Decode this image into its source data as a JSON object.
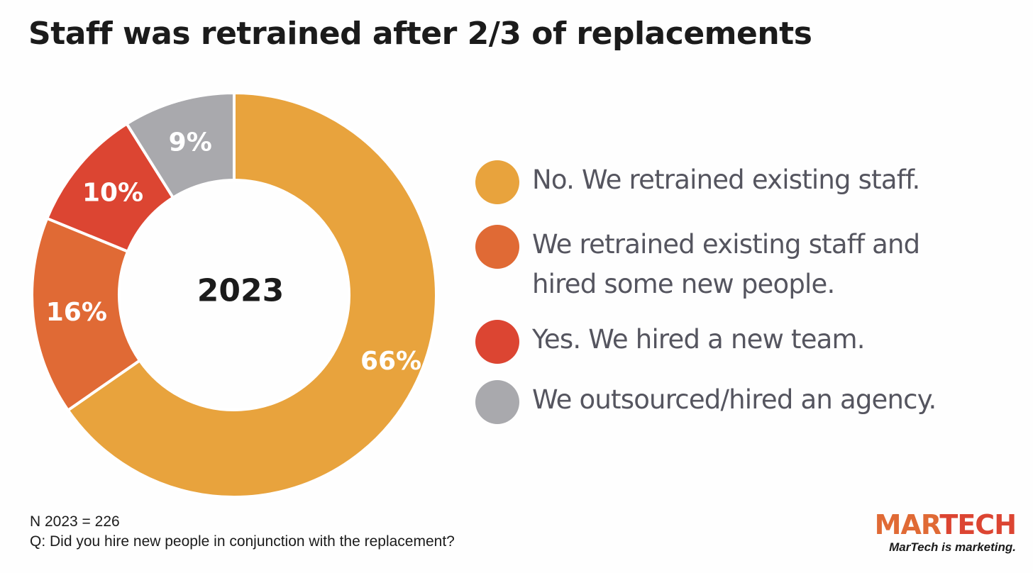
{
  "title": "Staff was retrained after 2/3 of replacements",
  "chart_data": {
    "type": "pie",
    "donut": true,
    "center_label": "2023",
    "categories": [
      "No. We retrained existing staff.",
      "We retrained existing staff and hired some new people.",
      "Yes. We hired a new team.",
      "We outsourced/hired an agency."
    ],
    "values": [
      66,
      16,
      10,
      9
    ],
    "labels": [
      "66%",
      "16%",
      "10%",
      "9%"
    ],
    "colors": [
      "#e8a33d",
      "#e06a35",
      "#dc4532",
      "#a9a9ad"
    ],
    "legend_position": "right"
  },
  "footer": {
    "n_line": "N 2023 = 226",
    "question": "Q: Did you hire new people in conjunction with the replacement?"
  },
  "logo": {
    "part1": "MAR",
    "part2": "TECH",
    "tagline": "MarTech is marketing.",
    "color1": "#e06a35",
    "color2": "#dc4532"
  }
}
